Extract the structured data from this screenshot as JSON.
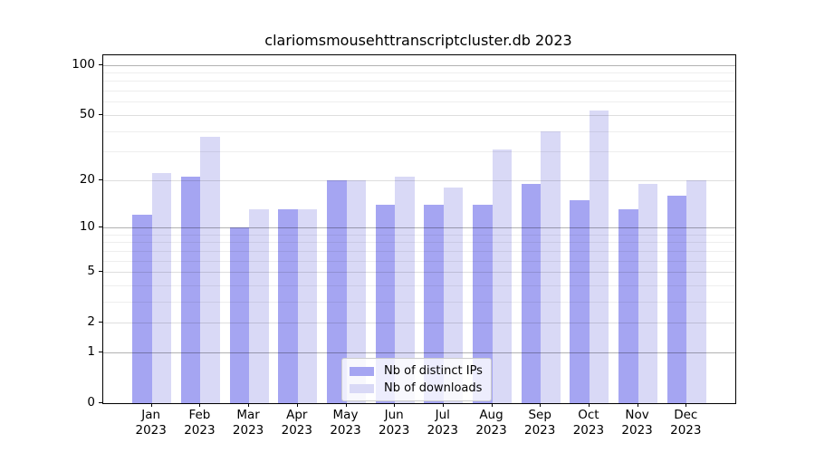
{
  "chart_data": {
    "type": "bar",
    "title": "clariomsmousehttranscriptcluster.db 2023",
    "year": "2023",
    "month_labels": [
      "Jan",
      "Feb",
      "Mar",
      "Apr",
      "May",
      "Jun",
      "Jul",
      "Aug",
      "Sep",
      "Oct",
      "Nov",
      "Dec"
    ],
    "categories": [
      "Jan 2023",
      "Feb 2023",
      "Mar 2023",
      "Apr 2023",
      "May 2023",
      "Jun 2023",
      "Jul 2023",
      "Aug 2023",
      "Sep 2023",
      "Oct 2023",
      "Nov 2023",
      "Dec 2023"
    ],
    "series": [
      {
        "name": "Nb of distinct IPs",
        "color": "#a5a5f2",
        "values": [
          12,
          21,
          10,
          13,
          20,
          14,
          14,
          14,
          19,
          15,
          13,
          16
        ]
      },
      {
        "name": "Nb of downloads",
        "color": "#d9d9f6",
        "values": [
          22,
          37,
          13,
          13,
          20,
          21,
          18,
          31,
          40,
          53,
          19,
          20
        ]
      }
    ],
    "xlabel": "",
    "ylabel": "",
    "yscale": "log1p",
    "ylim": [
      0,
      114
    ],
    "yticks": [
      0,
      1,
      2,
      5,
      10,
      20,
      50,
      100
    ],
    "yticks_minor": [
      3,
      4,
      6,
      7,
      8,
      9,
      30,
      40,
      60,
      70,
      80,
      90
    ],
    "grid": true,
    "legend_position": "lower center inside",
    "colors": {
      "grid_decade": "rgba(0,0,0,0.30)",
      "grid_mid": "rgba(0,0,0,0.13)",
      "grid_minor": "rgba(0,0,0,0.065)",
      "axis": "#000000",
      "background": "#ffffff"
    }
  }
}
